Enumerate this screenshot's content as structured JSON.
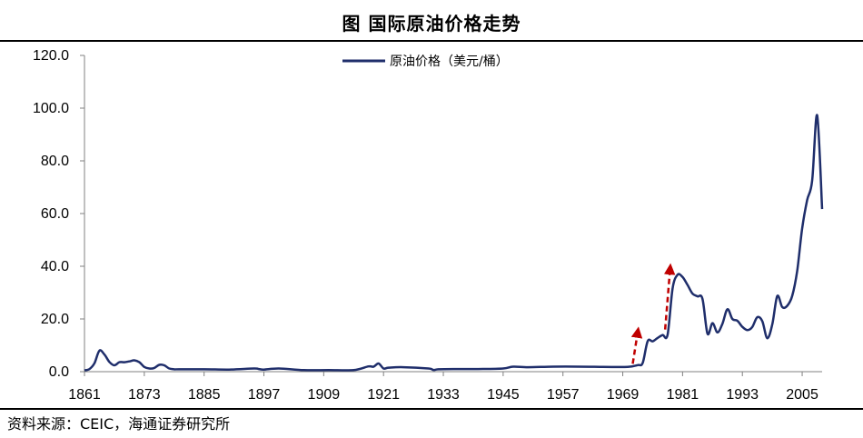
{
  "header": {
    "title": "图  国际原油价格走势"
  },
  "footer": {
    "source": "资料来源：CEIC，海通证券研究所"
  },
  "colors": {
    "series": "#1F2E6B",
    "arrow": "#C00000",
    "axis": "#808080"
  },
  "chart_data": {
    "type": "line",
    "title": "图  国际原油价格走势",
    "xlabel": "",
    "ylabel": "",
    "xlim": [
      1861,
      2009
    ],
    "ylim": [
      0,
      120
    ],
    "xticks": [
      1861,
      1873,
      1885,
      1897,
      1909,
      1921,
      1933,
      1945,
      1957,
      1969,
      1981,
      1993,
      2005
    ],
    "yticks": [
      "0.0",
      "20.0",
      "40.0",
      "60.0",
      "80.0",
      "100.0",
      "120.0"
    ],
    "legend": {
      "position": "top-center"
    },
    "grid": false,
    "series": [
      {
        "name": "原油价格（美元/桶）",
        "x": [
          1861,
          1862,
          1863,
          1864,
          1865,
          1866,
          1867,
          1868,
          1869,
          1870,
          1871,
          1872,
          1873,
          1874,
          1875,
          1876,
          1877,
          1878,
          1879,
          1880,
          1885,
          1890,
          1895,
          1896,
          1897,
          1900,
          1905,
          1910,
          1915,
          1918,
          1919,
          1920,
          1921,
          1922,
          1925,
          1930,
          1931,
          1932,
          1935,
          1940,
          1945,
          1947,
          1950,
          1955,
          1960,
          1965,
          1970,
          1972,
          1973,
          1974,
          1975,
          1976,
          1977,
          1978,
          1979,
          1980,
          1981,
          1982,
          1983,
          1984,
          1985,
          1986,
          1987,
          1988,
          1989,
          1990,
          1991,
          1992,
          1993,
          1994,
          1995,
          1996,
          1997,
          1998,
          1999,
          2000,
          2001,
          2002,
          2003,
          2004,
          2005,
          2006,
          2007,
          2008,
          2009
        ],
        "y": [
          0.5,
          1.0,
          3.2,
          8.0,
          6.5,
          3.7,
          2.4,
          3.6,
          3.6,
          3.9,
          4.3,
          3.6,
          1.8,
          1.2,
          1.4,
          2.6,
          2.4,
          1.2,
          0.9,
          0.9,
          0.9,
          0.8,
          1.2,
          1.0,
          0.8,
          1.2,
          0.6,
          0.6,
          0.6,
          2.0,
          1.9,
          3.1,
          1.2,
          1.5,
          1.7,
          1.2,
          0.65,
          0.9,
          1.0,
          1.0,
          1.2,
          1.9,
          1.7,
          1.9,
          1.9,
          1.8,
          1.8,
          2.5,
          3.3,
          11.6,
          11.5,
          12.8,
          13.9,
          14.0,
          31.6,
          36.8,
          35.9,
          32.9,
          29.6,
          28.6,
          27.6,
          14.4,
          18.4,
          14.9,
          18.2,
          23.7,
          20.0,
          19.3,
          17.0,
          15.8,
          17.0,
          20.7,
          19.1,
          12.7,
          17.9,
          28.7,
          24.5,
          25.0,
          28.8,
          38.3,
          54.5,
          65.1,
          72.4,
          97.3,
          61.7
        ]
      }
    ],
    "annotations": [
      {
        "type": "arrow",
        "label": "",
        "from": [
          1971,
          3
        ],
        "to": [
          1972,
          15
        ]
      },
      {
        "type": "arrow",
        "label": "",
        "from": [
          1977.5,
          16
        ],
        "to": [
          1978.5,
          39
        ]
      }
    ]
  }
}
